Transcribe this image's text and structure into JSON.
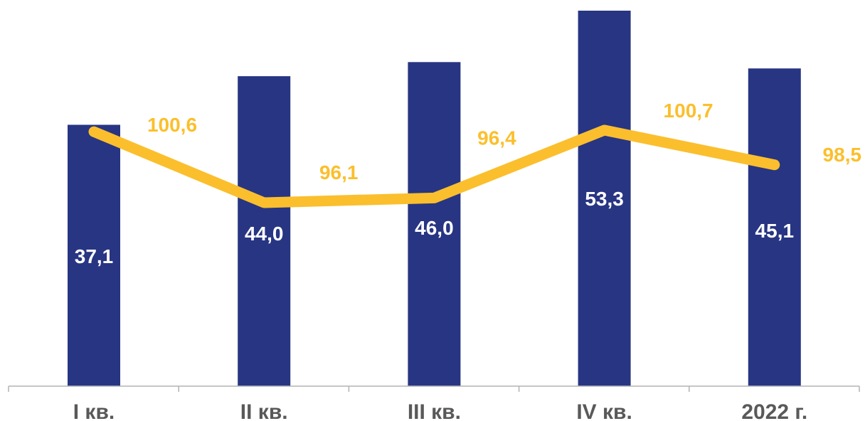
{
  "chart_data": {
    "type": "bar",
    "categories": [
      "I кв.",
      "II кв.",
      "III кв.",
      "IV кв.",
      "2022 г."
    ],
    "series": [
      {
        "values": [
          37.1,
          44.0,
          46.0,
          53.3,
          45.1
        ],
        "value_labels": [
          "37,1",
          "44,0",
          "46,0",
          "53,3",
          "45,1"
        ],
        "color": "#283583"
      },
      {
        "type": "line",
        "values": [
          100.6,
          96.1,
          96.4,
          100.7,
          98.5
        ],
        "value_labels": [
          "100,6",
          "96,1",
          "96,4",
          "100,7",
          "98,5"
        ],
        "color": "#fbbf2d"
      }
    ],
    "grid": false,
    "legend": "none"
  }
}
